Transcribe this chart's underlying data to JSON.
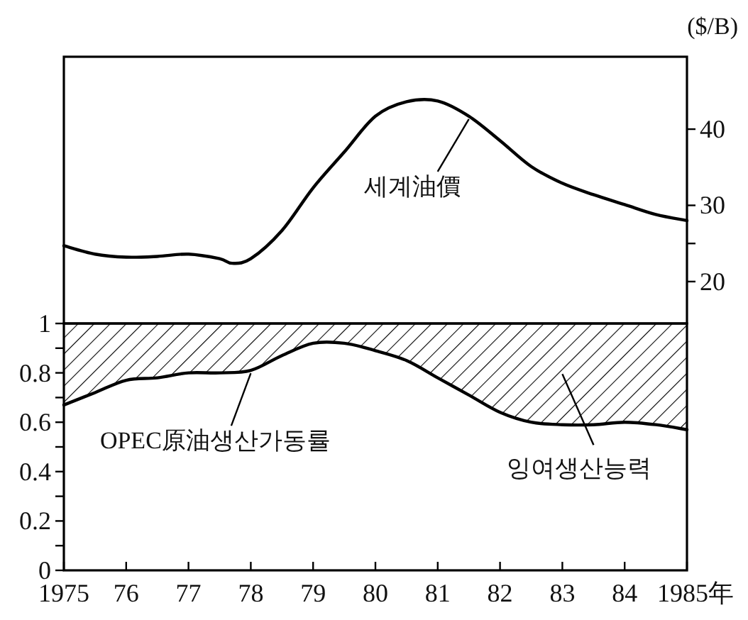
{
  "chart_data": [
    {
      "type": "line",
      "ylabel": "($/B)",
      "xlim": [
        1975,
        1985
      ],
      "ylim": [
        14.5,
        49.5
      ],
      "yticks": [
        20,
        {
          "value": 25,
          "label": null
        },
        30,
        40
      ],
      "tick_labels": "y",
      "grid": false,
      "marker": "none",
      "line_style": "solid",
      "x": [
        1975,
        1975.5,
        1976,
        1976.5,
        1977,
        1977.5,
        1977.7,
        1978,
        1978.5,
        1979,
        1979.5,
        1980,
        1980.5,
        1981,
        1981.5,
        1982,
        1982.5,
        1983,
        1983.5,
        1984,
        1984.5,
        1985
      ],
      "series": [
        {
          "name": "세계油價",
          "color": "#000000",
          "values": [
            24.7,
            23.6,
            23.2,
            23.3,
            23.6,
            23.0,
            22.4,
            23.0,
            26.7,
            32.3,
            37.0,
            41.7,
            43.6,
            43.7,
            41.7,
            38.5,
            35.1,
            32.9,
            31.4,
            30.1,
            28.8,
            28.0
          ]
        }
      ]
    },
    {
      "type": "line",
      "xlim": [
        1975,
        1985
      ],
      "ylim": [
        0,
        1
      ],
      "xticks": [
        {
          "value": 1975,
          "label": "1975"
        },
        {
          "value": 1976,
          "label": "76"
        },
        {
          "value": 1977,
          "label": "77"
        },
        {
          "value": 1978,
          "label": "78"
        },
        {
          "value": 1979,
          "label": "79"
        },
        {
          "value": 1980,
          "label": "80"
        },
        {
          "value": 1981,
          "label": "81"
        },
        {
          "value": 1982,
          "label": "82"
        },
        {
          "value": 1983,
          "label": "83"
        },
        {
          "value": 1984,
          "label": "84"
        },
        {
          "value": 1985,
          "label": "1985年"
        }
      ],
      "yticks": [
        0,
        {
          "value": 0.1,
          "label": null
        },
        0.2,
        {
          "value": 0.3,
          "label": null
        },
        0.4,
        {
          "value": 0.5,
          "label": null
        },
        0.6,
        {
          "value": 0.7,
          "label": null
        },
        0.8,
        {
          "value": 0.9,
          "label": null
        },
        1
      ],
      "grid": false,
      "marker": "none",
      "line_style": "solid",
      "x": [
        1975,
        1975.5,
        1976,
        1976.5,
        1977,
        1977.5,
        1978,
        1978.5,
        1979,
        1979.5,
        1980,
        1980.5,
        1981,
        1981.5,
        1982,
        1982.5,
        1983,
        1983.5,
        1984,
        1984.5,
        1985
      ],
      "series": [
        {
          "name": "OPEC原油생산가동률",
          "color": "#000000",
          "values": [
            0.67,
            0.72,
            0.77,
            0.78,
            0.8,
            0.8,
            0.81,
            0.87,
            0.92,
            0.92,
            0.89,
            0.85,
            0.78,
            0.71,
            0.64,
            0.6,
            0.59,
            0.59,
            0.6,
            0.59,
            0.57
          ],
          "lower": [
            0.67,
            0.72,
            0.77,
            0.78,
            0.8,
            0.8,
            0.81,
            0.87,
            0.92,
            0.92,
            0.89,
            0.85,
            0.78,
            0.71,
            0.64,
            0.6,
            0.59,
            0.59,
            0.6,
            0.59,
            0.57
          ],
          "upper": [
            1,
            1,
            1,
            1,
            1,
            1,
            1,
            1,
            1,
            1,
            1,
            1,
            1,
            1,
            1,
            1,
            1,
            1,
            1,
            1,
            1
          ]
        }
      ],
      "annotations": [
        "잉여생산능력"
      ]
    }
  ]
}
